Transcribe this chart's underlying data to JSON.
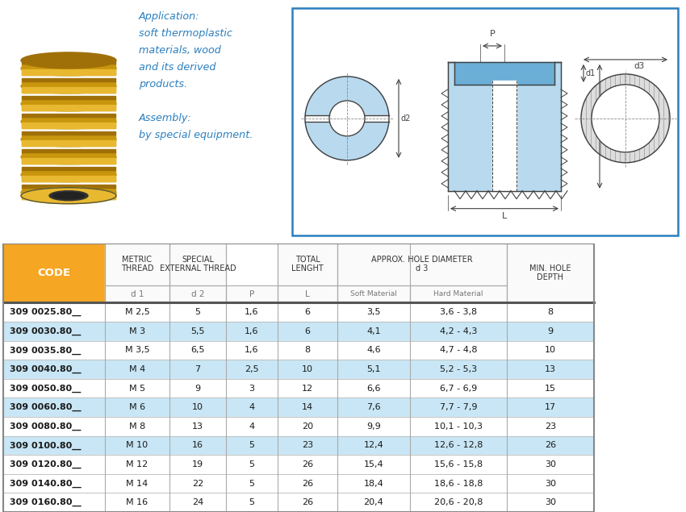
{
  "header_bg": "#F5A623",
  "row_bg_highlight": "#C8E6F5",
  "row_bg_normal": "#FFFFFF",
  "border_color": "#AAAAAA",
  "app_text_color": "#2A7FBF",
  "diagram_border_color": "#2A7FBF",
  "diagram_fill_color": "#B8D9EE",
  "diagram_fill_dark": "#6BAED6",
  "app_lines": [
    "Application:",
    "soft thermoplastic",
    "materials, wood",
    "and its derived",
    "products.",
    "",
    "Assembly:",
    "by special equipment."
  ],
  "col_labels_r1": [
    "CODE",
    "METRIC\nTHREAD",
    "SPECIAL\nEXTERNAL THREAD",
    "",
    "TOTAL\nLENGHT",
    "APPROX. HOLE DIAMETER\nd 3",
    "",
    "MIN. HOLE\nDEPTH"
  ],
  "col_labels_r3": [
    "",
    "d 1",
    "d 2",
    "P",
    "L",
    "Soft Material",
    "Hard Material",
    ""
  ],
  "rows": [
    {
      "code": "309 0025.80__",
      "d1": "M 2,5",
      "d2": "5",
      "P": "1,6",
      "L": "6",
      "soft": "3,5",
      "hard": "3,6 - 3,8",
      "depth": "8",
      "hl": false
    },
    {
      "code": "309 0030.80__",
      "d1": "M 3",
      "d2": "5,5",
      "P": "1,6",
      "L": "6",
      "soft": "4,1",
      "hard": "4,2 - 4,3",
      "depth": "9",
      "hl": true
    },
    {
      "code": "309 0035.80__",
      "d1": "M 3,5",
      "d2": "6,5",
      "P": "1,6",
      "L": "8",
      "soft": "4,6",
      "hard": "4,7 - 4,8",
      "depth": "10",
      "hl": false
    },
    {
      "code": "309 0040.80__",
      "d1": "M 4",
      "d2": "7",
      "P": "2,5",
      "L": "10",
      "soft": "5,1",
      "hard": "5,2 - 5,3",
      "depth": "13",
      "hl": true
    },
    {
      "code": "309 0050.80__",
      "d1": "M 5",
      "d2": "9",
      "P": "3",
      "L": "12",
      "soft": "6,6",
      "hard": "6,7 - 6,9",
      "depth": "15",
      "hl": false
    },
    {
      "code": "309 0060.80__",
      "d1": "M 6",
      "d2": "10",
      "P": "4",
      "L": "14",
      "soft": "7,6",
      "hard": "7,7 - 7,9",
      "depth": "17",
      "hl": true
    },
    {
      "code": "309 0080.80__",
      "d1": "M 8",
      "d2": "13",
      "P": "4",
      "L": "20",
      "soft": "9,9",
      "hard": "10,1 - 10,3",
      "depth": "23",
      "hl": false
    },
    {
      "code": "309 0100.80__",
      "d1": "M 10",
      "d2": "16",
      "P": "5",
      "L": "23",
      "soft": "12,4",
      "hard": "12,6 - 12,8",
      "depth": "26",
      "hl": true
    },
    {
      "code": "309 0120.80__",
      "d1": "M 12",
      "d2": "19",
      "P": "5",
      "L": "26",
      "soft": "15,4",
      "hard": "15,6 - 15,8",
      "depth": "30",
      "hl": false
    },
    {
      "code": "309 0140.80__",
      "d1": "M 14",
      "d2": "22",
      "P": "5",
      "L": "26",
      "soft": "18,4",
      "hard": "18,6 - 18,8",
      "depth": "30",
      "hl": false
    },
    {
      "code": "309 0160.80__",
      "d1": "M 16",
      "d2": "24",
      "P": "5",
      "L": "26",
      "soft": "20,4",
      "hard": "20,6 - 20,8",
      "depth": "30",
      "hl": false
    }
  ]
}
